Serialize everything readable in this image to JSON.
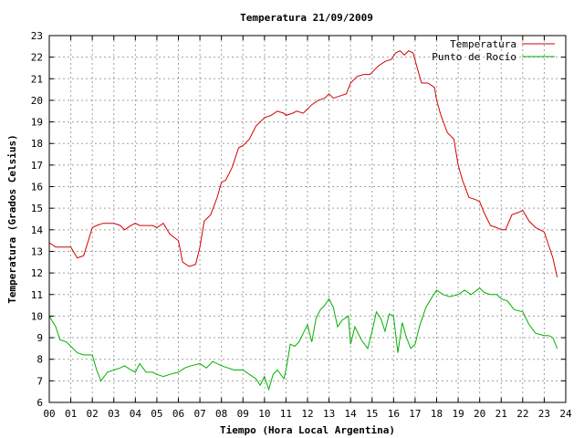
{
  "chart_data": {
    "type": "line",
    "title": "Temperatura 21/09/2009",
    "xlabel": "Tiempo (Hora Local Argentina)",
    "ylabel": "Temperatura (Grados Celsius)",
    "xlim": [
      0,
      24
    ],
    "ylim": [
      6,
      23
    ],
    "x_tick_labels": [
      "00",
      "01",
      "02",
      "03",
      "04",
      "05",
      "06",
      "07",
      "08",
      "09",
      "10",
      "11",
      "12",
      "13",
      "14",
      "15",
      "16",
      "17",
      "18",
      "19",
      "20",
      "21",
      "22",
      "23",
      "24"
    ],
    "y_tick_labels": [
      "6",
      "7",
      "8",
      "9",
      "10",
      "11",
      "12",
      "13",
      "14",
      "15",
      "16",
      "17",
      "18",
      "19",
      "20",
      "21",
      "22",
      "23"
    ],
    "grid": true,
    "legend_position": "top-right",
    "series": [
      {
        "name": "Temperatura",
        "color": "#d40000",
        "x": [
          0,
          0.3,
          0.5,
          1,
          1.3,
          1.6,
          2,
          2.2,
          2.5,
          2.8,
          3,
          3.3,
          3.5,
          3.8,
          4,
          4.2,
          4.5,
          4.8,
          5,
          5.3,
          5.6,
          6,
          6.2,
          6.5,
          6.8,
          7,
          7.2,
          7.5,
          7.8,
          8,
          8.2,
          8.5,
          8.8,
          9,
          9.3,
          9.6,
          10,
          10.3,
          10.6,
          10.9,
          11,
          11.3,
          11.5,
          11.8,
          12,
          12.2,
          12.5,
          12.8,
          13,
          13.2,
          13.5,
          13.8,
          14,
          14.3,
          14.6,
          14.9,
          15,
          15.3,
          15.6,
          15.9,
          16.1,
          16.3,
          16.5,
          16.7,
          16.9,
          17.1,
          17.3,
          17.6,
          17.9,
          18,
          18.2,
          18.5,
          18.8,
          19,
          19.2,
          19.5,
          19.8,
          20,
          20.2,
          20.5,
          20.8,
          21,
          21.2,
          21.5,
          21.8,
          22,
          22.3,
          22.6,
          23,
          23.2,
          23.4,
          23.6
        ],
        "values": [
          13.4,
          13.2,
          13.2,
          13.2,
          12.7,
          12.8,
          14.1,
          14.2,
          14.3,
          14.3,
          14.3,
          14.2,
          14.0,
          14.2,
          14.3,
          14.2,
          14.2,
          14.2,
          14.1,
          14.3,
          13.8,
          13.5,
          12.5,
          12.3,
          12.4,
          13.2,
          14.4,
          14.7,
          15.5,
          16.2,
          16.3,
          16.9,
          17.8,
          17.9,
          18.2,
          18.8,
          19.2,
          19.3,
          19.5,
          19.4,
          19.3,
          19.4,
          19.5,
          19.4,
          19.6,
          19.8,
          20.0,
          20.1,
          20.3,
          20.1,
          20.2,
          20.3,
          20.8,
          21.1,
          21.2,
          21.2,
          21.3,
          21.6,
          21.8,
          21.9,
          22.2,
          22.3,
          22.1,
          22.3,
          22.2,
          21.5,
          20.8,
          20.8,
          20.6,
          20.0,
          19.3,
          18.5,
          18.2,
          17.0,
          16.3,
          15.5,
          15.4,
          15.3,
          14.8,
          14.2,
          14.1,
          14.0,
          14.0,
          14.7,
          14.8,
          14.9,
          14.4,
          14.1,
          13.9,
          13.3,
          12.7,
          11.8
        ]
      },
      {
        "name": "Punto de Rocío",
        "color": "#00b000",
        "x": [
          0,
          0.3,
          0.5,
          0.8,
          1,
          1.3,
          1.6,
          2,
          2.2,
          2.4,
          2.7,
          3,
          3.3,
          3.5,
          3.8,
          4,
          4.2,
          4.5,
          4.8,
          5,
          5.3,
          5.6,
          6,
          6.3,
          6.6,
          7,
          7.3,
          7.6,
          8,
          8.3,
          8.6,
          9,
          9.3,
          9.6,
          9.8,
          10,
          10.2,
          10.4,
          10.6,
          10.9,
          11,
          11.2,
          11.4,
          11.6,
          11.8,
          12,
          12.2,
          12.4,
          12.6,
          12.8,
          13,
          13.2,
          13.4,
          13.6,
          13.9,
          14,
          14.2,
          14.5,
          14.8,
          15,
          15.2,
          15.4,
          15.6,
          15.8,
          16,
          16.2,
          16.4,
          16.6,
          16.8,
          17,
          17.2,
          17.5,
          17.8,
          18,
          18.3,
          18.6,
          19,
          19.3,
          19.6,
          20,
          20.2,
          20.5,
          20.8,
          21,
          21.3,
          21.6,
          22,
          22.3,
          22.6,
          23,
          23.2,
          23.4,
          23.6
        ],
        "values": [
          10.0,
          9.5,
          8.9,
          8.8,
          8.6,
          8.3,
          8.2,
          8.2,
          7.5,
          7.0,
          7.4,
          7.5,
          7.6,
          7.7,
          7.5,
          7.4,
          7.8,
          7.4,
          7.4,
          7.3,
          7.2,
          7.3,
          7.4,
          7.6,
          7.7,
          7.8,
          7.6,
          7.9,
          7.7,
          7.6,
          7.5,
          7.5,
          7.3,
          7.1,
          6.8,
          7.2,
          6.6,
          7.3,
          7.5,
          7.1,
          7.5,
          8.7,
          8.6,
          8.8,
          9.2,
          9.6,
          8.8,
          9.9,
          10.3,
          10.5,
          10.8,
          10.4,
          9.5,
          9.8,
          10.0,
          8.7,
          9.5,
          8.9,
          8.5,
          9.3,
          10.2,
          9.9,
          9.3,
          10.1,
          10.0,
          8.3,
          9.7,
          9.0,
          8.5,
          8.7,
          9.5,
          10.4,
          10.9,
          11.2,
          11.0,
          10.9,
          11.0,
          11.2,
          11.0,
          11.3,
          11.1,
          11.0,
          11.0,
          10.8,
          10.7,
          10.3,
          10.2,
          9.6,
          9.2,
          9.1,
          9.1,
          9.0,
          8.5
        ]
      }
    ]
  }
}
